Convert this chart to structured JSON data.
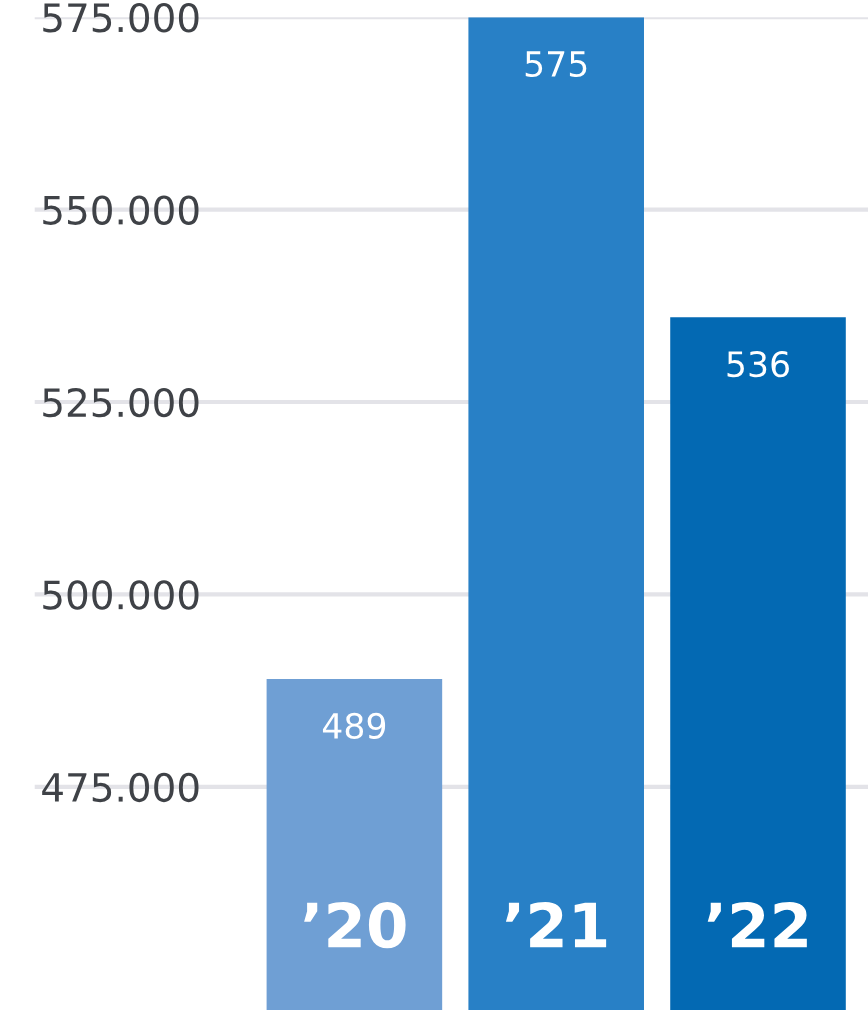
{
  "chart_data": {
    "type": "bar",
    "categories": [
      "’20",
      "’21",
      "’22"
    ],
    "values": [
      489,
      575,
      536
    ],
    "colors": [
      "#6f9fd4",
      "#2880c6",
      "#0369b3"
    ],
    "value_labels": [
      "489",
      "575",
      "536"
    ],
    "ylim": [
      446,
      575
    ],
    "yticks": [
      {
        "value": 475,
        "label": "475.000"
      },
      {
        "value": 500,
        "label": "500.000"
      },
      {
        "value": 525,
        "label": "525.000"
      },
      {
        "value": 550,
        "label": "550.000"
      },
      {
        "value": 575,
        "label": "575.000"
      }
    ],
    "grid": "y"
  }
}
